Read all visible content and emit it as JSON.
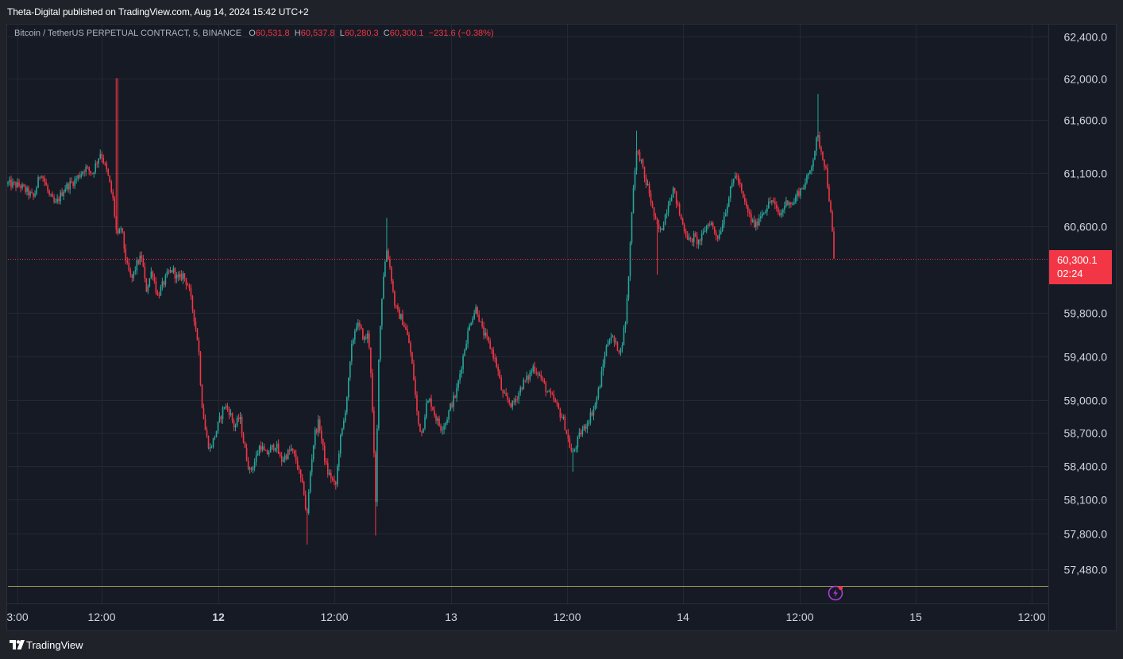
{
  "header": {
    "publisher": "Theta-Digital published on TradingView.com, Aug 14, 2024 15:42 UTC+2"
  },
  "legend": {
    "symbol": "Bitcoin / TetherUS PERPETUAL CONTRACT, 5, BINANCE",
    "open_label": "O",
    "open": "60,531.8",
    "high_label": "H",
    "high": "60,537.8",
    "low_label": "L",
    "low": "60,280.3",
    "close_label": "C",
    "close": "60,300.1",
    "change": "−231.6 (−0.38%)"
  },
  "last_price": {
    "value": "60,300.1",
    "countdown": "02:24"
  },
  "footer": {
    "brand": "TradingView"
  },
  "colors": {
    "up": "#26a69a",
    "down": "#f23645",
    "background": "#161a25",
    "grid": "#242833",
    "axis_text": "#d1d4dc"
  },
  "chart_data": {
    "type": "candlestick",
    "title": "",
    "y_scale": "log",
    "ylim": [
      57200,
      62700
    ],
    "y_ticks": [
      "62,400.0",
      "62,000.0",
      "61,600.0",
      "61,100.0",
      "60,600.0",
      "59,800.0",
      "59,400.0",
      "59,000.0",
      "58,700.0",
      "58,400.0",
      "58,100.0",
      "57,800.0",
      "57,480.0"
    ],
    "y_tick_values": [
      62400,
      62000,
      61600,
      61100,
      60600,
      59800,
      59400,
      59000,
      58700,
      58400,
      58100,
      57800,
      57480
    ],
    "x_ticks": [
      {
        "label": "3:00",
        "bold": false
      },
      {
        "label": "12:00",
        "bold": false
      },
      {
        "label": "12",
        "bold": true
      },
      {
        "label": "12:00",
        "bold": false
      },
      {
        "label": "13",
        "bold": false
      },
      {
        "label": "12:00",
        "bold": false
      },
      {
        "label": "14",
        "bold": false
      },
      {
        "label": "12:00",
        "bold": false
      },
      {
        "label": "15",
        "bold": false
      },
      {
        "label": "12:00",
        "bold": false
      }
    ],
    "path_points": [
      [
        0.0,
        61000
      ],
      [
        0.012,
        60980
      ],
      [
        0.025,
        60870
      ],
      [
        0.032,
        61120
      ],
      [
        0.04,
        60890
      ],
      [
        0.046,
        60800
      ],
      [
        0.055,
        60960
      ],
      [
        0.065,
        61030
      ],
      [
        0.075,
        61150
      ],
      [
        0.082,
        61100
      ],
      [
        0.09,
        61300
      ],
      [
        0.097,
        61080
      ],
      [
        0.102,
        60850
      ],
      [
        0.106,
        60480
      ],
      [
        0.11,
        60600
      ],
      [
        0.115,
        60250
      ],
      [
        0.12,
        60100
      ],
      [
        0.125,
        60250
      ],
      [
        0.13,
        60320
      ],
      [
        0.134,
        60000
      ],
      [
        0.14,
        60200
      ],
      [
        0.145,
        59950
      ],
      [
        0.15,
        60050
      ],
      [
        0.155,
        60150
      ],
      [
        0.16,
        60200
      ],
      [
        0.165,
        60100
      ],
      [
        0.17,
        60150
      ],
      [
        0.175,
        60050
      ],
      [
        0.18,
        59800
      ],
      [
        0.185,
        59500
      ],
      [
        0.188,
        59000
      ],
      [
        0.192,
        58700
      ],
      [
        0.196,
        58550
      ],
      [
        0.2,
        58650
      ],
      [
        0.205,
        58800
      ],
      [
        0.21,
        58950
      ],
      [
        0.215,
        58900
      ],
      [
        0.22,
        58750
      ],
      [
        0.225,
        58850
      ],
      [
        0.23,
        58550
      ],
      [
        0.235,
        58350
      ],
      [
        0.24,
        58450
      ],
      [
        0.245,
        58600
      ],
      [
        0.25,
        58500
      ],
      [
        0.255,
        58550
      ],
      [
        0.26,
        58600
      ],
      [
        0.265,
        58450
      ],
      [
        0.27,
        58500
      ],
      [
        0.275,
        58550
      ],
      [
        0.28,
        58450
      ],
      [
        0.285,
        58250
      ],
      [
        0.288,
        58150
      ],
      [
        0.29,
        57900
      ],
      [
        0.294,
        58400
      ],
      [
        0.298,
        58700
      ],
      [
        0.302,
        58800
      ],
      [
        0.306,
        58550
      ],
      [
        0.31,
        58350
      ],
      [
        0.314,
        58300
      ],
      [
        0.318,
        58200
      ],
      [
        0.322,
        58600
      ],
      [
        0.326,
        58800
      ],
      [
        0.33,
        59100
      ],
      [
        0.334,
        59500
      ],
      [
        0.338,
        59700
      ],
      [
        0.342,
        59650
      ],
      [
        0.346,
        59550
      ],
      [
        0.35,
        59600
      ],
      [
        0.352,
        59350
      ],
      [
        0.355,
        58600
      ],
      [
        0.357,
        58050
      ],
      [
        0.36,
        59400
      ],
      [
        0.364,
        60100
      ],
      [
        0.368,
        60400
      ],
      [
        0.372,
        60150
      ],
      [
        0.375,
        59900
      ],
      [
        0.378,
        59800
      ],
      [
        0.382,
        59750
      ],
      [
        0.386,
        59650
      ],
      [
        0.39,
        59500
      ],
      [
        0.394,
        59200
      ],
      [
        0.398,
        58800
      ],
      [
        0.402,
        58700
      ],
      [
        0.406,
        58950
      ],
      [
        0.41,
        59000
      ],
      [
        0.415,
        58850
      ],
      [
        0.42,
        58750
      ],
      [
        0.425,
        58800
      ],
      [
        0.43,
        58950
      ],
      [
        0.435,
        59050
      ],
      [
        0.44,
        59300
      ],
      [
        0.445,
        59550
      ],
      [
        0.45,
        59750
      ],
      [
        0.455,
        59850
      ],
      [
        0.46,
        59650
      ],
      [
        0.465,
        59550
      ],
      [
        0.47,
        59450
      ],
      [
        0.475,
        59300
      ],
      [
        0.48,
        59050
      ],
      [
        0.485,
        59000
      ],
      [
        0.49,
        58950
      ],
      [
        0.495,
        59050
      ],
      [
        0.5,
        59150
      ],
      [
        0.505,
        59200
      ],
      [
        0.51,
        59300
      ],
      [
        0.515,
        59250
      ],
      [
        0.52,
        59150
      ],
      [
        0.525,
        59050
      ],
      [
        0.53,
        59000
      ],
      [
        0.535,
        58900
      ],
      [
        0.54,
        58800
      ],
      [
        0.545,
        58600
      ],
      [
        0.548,
        58500
      ],
      [
        0.552,
        58600
      ],
      [
        0.556,
        58700
      ],
      [
        0.56,
        58750
      ],
      [
        0.565,
        58850
      ],
      [
        0.57,
        58950
      ],
      [
        0.575,
        59150
      ],
      [
        0.58,
        59450
      ],
      [
        0.585,
        59600
      ],
      [
        0.59,
        59500
      ],
      [
        0.595,
        59450
      ],
      [
        0.6,
        59750
      ],
      [
        0.603,
        60200
      ],
      [
        0.606,
        60800
      ],
      [
        0.61,
        61300
      ],
      [
        0.614,
        61250
      ],
      [
        0.618,
        61050
      ],
      [
        0.622,
        60950
      ],
      [
        0.626,
        60750
      ],
      [
        0.63,
        60600
      ],
      [
        0.634,
        60550
      ],
      [
        0.638,
        60700
      ],
      [
        0.642,
        60850
      ],
      [
        0.646,
        60950
      ],
      [
        0.65,
        60800
      ],
      [
        0.654,
        60650
      ],
      [
        0.658,
        60550
      ],
      [
        0.662,
        60450
      ],
      [
        0.666,
        60500
      ],
      [
        0.67,
        60450
      ],
      [
        0.674,
        60500
      ],
      [
        0.678,
        60600
      ],
      [
        0.682,
        60650
      ],
      [
        0.686,
        60550
      ],
      [
        0.69,
        60500
      ],
      [
        0.694,
        60650
      ],
      [
        0.698,
        60800
      ],
      [
        0.702,
        60950
      ],
      [
        0.706,
        61100
      ],
      [
        0.71,
        61000
      ],
      [
        0.714,
        60850
      ],
      [
        0.718,
        60750
      ],
      [
        0.722,
        60650
      ],
      [
        0.726,
        60600
      ],
      [
        0.73,
        60700
      ],
      [
        0.734,
        60750
      ],
      [
        0.738,
        60800
      ],
      [
        0.742,
        60850
      ],
      [
        0.746,
        60750
      ],
      [
        0.75,
        60700
      ],
      [
        0.754,
        60800
      ],
      [
        0.758,
        60850
      ],
      [
        0.762,
        60800
      ],
      [
        0.766,
        60900
      ],
      [
        0.77,
        60950
      ],
      [
        0.774,
        61000
      ],
      [
        0.778,
        61100
      ],
      [
        0.782,
        61250
      ],
      [
        0.786,
        61450
      ],
      [
        0.79,
        61300
      ],
      [
        0.794,
        61150
      ],
      [
        0.797,
        60900
      ],
      [
        0.8,
        60600
      ],
      [
        0.802,
        60300
      ]
    ],
    "wick_range": [
      0.0,
      0.802
    ],
    "plot_area": {
      "note": "time axis spans from Aug 10 ~21:00 to Aug 15 ~12:00; last candle Aug 14 ~15:40"
    }
  }
}
